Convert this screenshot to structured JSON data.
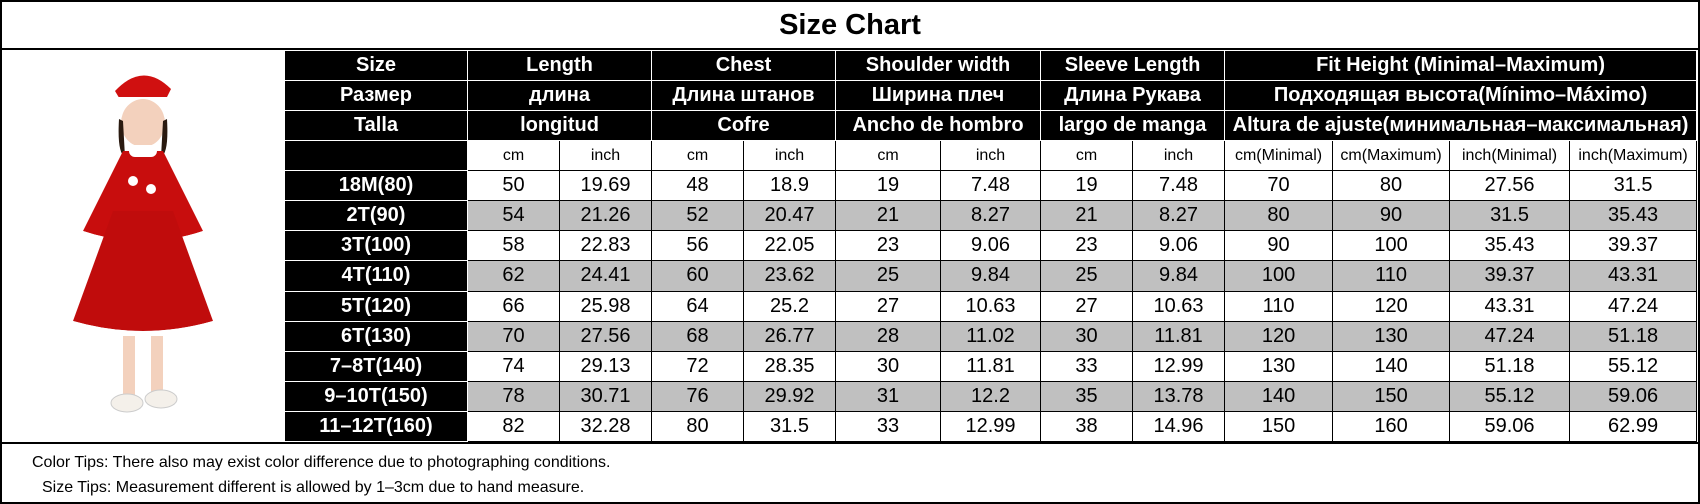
{
  "title": "Size Chart",
  "table": {
    "header_rows": [
      [
        "Size",
        "Length",
        "Chest",
        "Shoulder width",
        "Sleeve Length",
        "Fit Height (Minimal–Maximum)"
      ],
      [
        "Размер",
        "длина",
        "Длина штанов",
        "Ширина плеч",
        "Длина Рукава",
        "Подходящая высота(Mínimo–Máximo)"
      ],
      [
        "Talla",
        "longitud",
        "Cofre",
        "Ancho de hombro",
        "largo de manga",
        "Altura de ajuste(минимальная–максимальная)"
      ]
    ],
    "units": [
      "cm",
      "inch",
      "cm",
      "inch",
      "cm",
      "inch",
      "cm",
      "inch",
      "cm(Minimal)",
      "cm(Maximum)",
      "inch(Minimal)",
      "inch(Maximum)"
    ],
    "rows": [
      [
        "18M(80)",
        50,
        19.69,
        48,
        18.9,
        19,
        7.48,
        19,
        7.48,
        70,
        80,
        27.56,
        31.5
      ],
      [
        "2T(90)",
        54,
        21.26,
        52,
        20.47,
        21,
        8.27,
        21,
        8.27,
        80,
        90,
        31.5,
        35.43
      ],
      [
        "3T(100)",
        58,
        22.83,
        56,
        22.05,
        23,
        9.06,
        23,
        9.06,
        90,
        100,
        35.43,
        39.37
      ],
      [
        "4T(110)",
        62,
        24.41,
        60,
        23.62,
        25,
        9.84,
        25,
        9.84,
        100,
        110,
        39.37,
        43.31
      ],
      [
        "5T(120)",
        66,
        25.98,
        64,
        25.2,
        27,
        10.63,
        27,
        10.63,
        110,
        120,
        43.31,
        47.24
      ],
      [
        "6T(130)",
        70,
        27.56,
        68,
        26.77,
        28,
        11.02,
        30,
        11.81,
        120,
        130,
        47.24,
        51.18
      ],
      [
        "7–8T(140)",
        74,
        29.13,
        72,
        28.35,
        30,
        11.81,
        33,
        12.99,
        130,
        140,
        51.18,
        55.12
      ],
      [
        "9–10T(150)",
        78,
        30.71,
        76,
        29.92,
        31,
        12.2,
        35,
        13.78,
        140,
        150,
        55.12,
        59.06
      ],
      [
        "11–12T(160)",
        82,
        32.28,
        80,
        31.5,
        33,
        12.99,
        38,
        14.96,
        150,
        160,
        59.06,
        62.99
      ]
    ]
  },
  "notes": [
    "Color Tips: There also may exist color difference due to photographing conditions.",
    "Size Tips: Measurement different is allowed by 1–3cm due to hand measure."
  ]
}
